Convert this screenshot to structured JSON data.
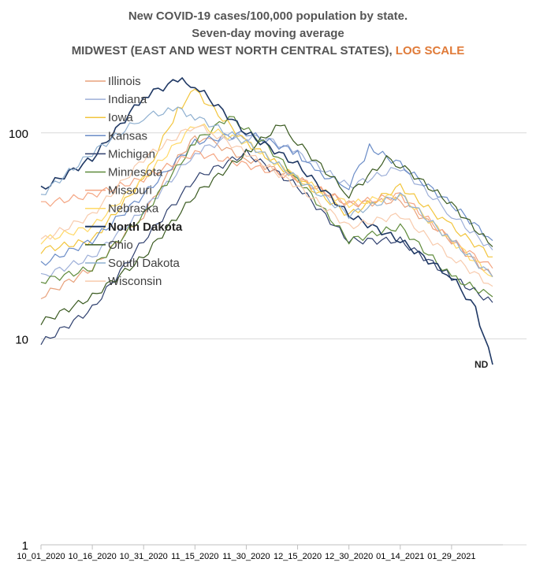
{
  "chart_data": {
    "type": "line",
    "title_line1": "New COVID-19 cases/100,000 population by state.",
    "title_line2": "Seven-day moving average",
    "title_line3_main": "MIDWEST (EAST AND WEST NORTH CENTRAL STATES),",
    "title_line3_highlight": "LOG SCALE",
    "title_highlight_color": "#e07b39",
    "yscale": "log",
    "ylim": [
      1,
      200
    ],
    "yticks": [
      "1",
      "10",
      "100"
    ],
    "xticks": [
      "10_01_2020",
      "10_16_2020",
      "10_31_2020",
      "11_15_2020",
      "11_30_2020",
      "12_15_2020",
      "12_30_2020",
      "01_14_2021",
      "01_29_2021"
    ],
    "grid": "horizontal",
    "legend_position": "top-left",
    "annotation": {
      "text": "ND",
      "series": "North Dakota"
    },
    "series": [
      {
        "name": "Illinois",
        "color": "#e8a27c",
        "bold": false,
        "x": [
          "10_01_2020",
          "10_16_2020",
          "10_31_2020",
          "11_10_2020",
          "11_15_2020",
          "11_20_2020",
          "11_30_2020",
          "12_15_2020",
          "12_30_2020",
          "01_14_2021",
          "01_29_2021",
          "02_10_2021"
        ],
        "y": [
          16,
          22,
          40,
          75,
          95,
          90,
          75,
          60,
          45,
          47,
          30,
          20
        ]
      },
      {
        "name": "Indiana",
        "color": "#9dafd8",
        "bold": false,
        "x": [
          "10_01_2020",
          "10_16_2020",
          "10_31_2020",
          "11_15_2020",
          "11_25_2020",
          "12_05_2020",
          "12_15_2020",
          "12_30_2020",
          "01_14_2021",
          "01_29_2021",
          "02_10_2021"
        ],
        "y": [
          20,
          25,
          42,
          80,
          95,
          95,
          80,
          55,
          68,
          40,
          27
        ]
      },
      {
        "name": "Iowa",
        "color": "#f2c53d",
        "bold": false,
        "x": [
          "10_01_2020",
          "10_16_2020",
          "10_31_2020",
          "11_10_2020",
          "11_15_2020",
          "11_30_2020",
          "12_15_2020",
          "12_30_2020",
          "01_14_2021",
          "01_29_2021",
          "02_10_2021"
        ],
        "y": [
          27,
          30,
          60,
          130,
          160,
          90,
          60,
          40,
          55,
          35,
          25
        ]
      },
      {
        "name": "Kansas",
        "color": "#6a8cc7",
        "bold": false,
        "x": [
          "10_01_2020",
          "10_16_2020",
          "10_31_2020",
          "11_15_2020",
          "11_30_2020",
          "12_15_2020",
          "12_20_2020",
          "12_30_2020",
          "01_05_2021",
          "01_14_2021",
          "01_29_2021",
          "02_10_2021"
        ],
        "y": [
          23,
          30,
          50,
          90,
          100,
          80,
          65,
          55,
          85,
          70,
          45,
          30
        ]
      },
      {
        "name": "Michigan",
        "color": "#2e3f6e",
        "bold": false,
        "x": [
          "10_01_2020",
          "10_16_2020",
          "10_31_2020",
          "11_15_2020",
          "11_30_2020",
          "12_15_2020",
          "12_30_2020",
          "01_14_2021",
          "01_29_2021",
          "02_10_2021"
        ],
        "y": [
          9.5,
          14,
          30,
          60,
          80,
          55,
          30,
          30,
          20,
          15
        ]
      },
      {
        "name": "Minnesota",
        "color": "#5e8a3a",
        "bold": false,
        "x": [
          "10_01_2020",
          "10_16_2020",
          "10_31_2020",
          "11_15_2020",
          "11_25_2020",
          "12_05_2020",
          "12_15_2020",
          "12_30_2020",
          "01_14_2021",
          "01_29_2021",
          "02_10_2021"
        ],
        "y": [
          19,
          22,
          40,
          90,
          120,
          90,
          60,
          30,
          35,
          20,
          16
        ]
      },
      {
        "name": "Missouri",
        "color": "#f4a582",
        "bold": false,
        "x": [
          "10_01_2020",
          "10_16_2020",
          "10_31_2020",
          "11_15_2020",
          "11_30_2020",
          "12_15_2020",
          "12_30_2020",
          "01_14_2021",
          "01_29_2021",
          "02_10_2021"
        ],
        "y": [
          45,
          50,
          60,
          80,
          70,
          60,
          45,
          50,
          30,
          22
        ]
      },
      {
        "name": "Nebraska",
        "color": "#ffd966",
        "bold": false,
        "x": [
          "10_01_2020",
          "10_16_2020",
          "10_31_2020",
          "11_15_2020",
          "11_30_2020",
          "12_15_2020",
          "12_30_2020",
          "01_14_2021",
          "01_29_2021",
          "02_10_2021"
        ],
        "y": [
          30,
          35,
          60,
          110,
          90,
          60,
          45,
          50,
          30,
          20
        ]
      },
      {
        "name": "North Dakota",
        "color": "#1f3864",
        "bold": true,
        "x": [
          "10_01_2020",
          "10_16_2020",
          "10_31_2020",
          "11_10_2020",
          "11_15_2020",
          "11_30_2020",
          "12_15_2020",
          "12_30_2020",
          "01_14_2021",
          "01_29_2021",
          "02_05_2021",
          "02_10_2021"
        ],
        "y": [
          53,
          75,
          150,
          180,
          170,
          100,
          70,
          40,
          30,
          20,
          14,
          7.5
        ]
      },
      {
        "name": "Ohio",
        "color": "#3a5a20",
        "bold": false,
        "x": [
          "10_01_2020",
          "10_16_2020",
          "10_31_2020",
          "11_15_2020",
          "11_30_2020",
          "12_10_2020",
          "12_15_2020",
          "12_30_2020",
          "01_10_2021",
          "01_14_2021",
          "01_29_2021",
          "02_10_2021"
        ],
        "y": [
          12,
          16,
          25,
          50,
          80,
          110,
          90,
          50,
          75,
          70,
          45,
          28
        ]
      },
      {
        "name": "South Dakota",
        "color": "#8fb0d0",
        "bold": false,
        "x": [
          "10_01_2020",
          "10_16_2020",
          "10_31_2020",
          "11_10_2020",
          "11_15_2020",
          "11_30_2020",
          "12_15_2020",
          "12_30_2020",
          "01_14_2021",
          "01_29_2021",
          "02_10_2021"
        ],
        "y": [
          50,
          80,
          120,
          130,
          120,
          90,
          60,
          40,
          50,
          30,
          20
        ]
      },
      {
        "name": "Wisconsin",
        "color": "#f8cbad",
        "bold": false,
        "x": [
          "10_01_2020",
          "10_16_2020",
          "10_31_2020",
          "11_15_2020",
          "11_20_2020",
          "11_30_2020",
          "12_15_2020",
          "12_30_2020",
          "01_14_2021",
          "01_29_2021",
          "02_10_2021"
        ],
        "y": [
          30,
          40,
          75,
          110,
          100,
          80,
          55,
          35,
          40,
          25,
          18
        ]
      }
    ]
  }
}
